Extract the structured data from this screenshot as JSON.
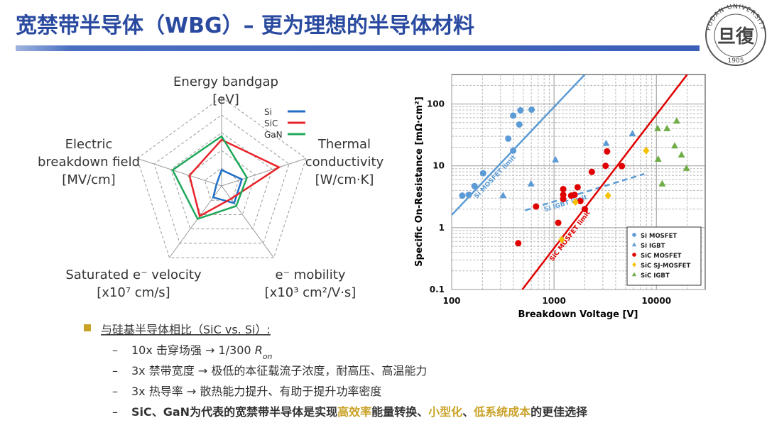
{
  "slide": {
    "title": "宽禁带半导体（WBG）– 更为理想的半导体材料",
    "bullet": "与硅基半导体相比（SiC vs. Si）:",
    "items": [
      {
        "parts": [
          {
            "text": "10x 击穿场强 → 1/300 "
          },
          {
            "text": "R",
            "style": "italic"
          },
          {
            "text": "on",
            "style": "italic-sub"
          }
        ]
      },
      {
        "parts": [
          {
            "text": "3x 禁带宽度 → 极低的本征载流子浓度，耐高压、高温能力"
          }
        ]
      },
      {
        "parts": [
          {
            "text": "3x 热导率 → 散热能力提升、有助于提升功率密度"
          }
        ]
      },
      {
        "bold": true,
        "color": "#1f3a8a",
        "parts": [
          {
            "text": "SiC、GaN为代表的宽禁带半导体是实现"
          },
          {
            "text": "高效率",
            "color": "#c9a227"
          },
          {
            "text": "能量转换、"
          },
          {
            "text": "小型化",
            "color": "#c9a227"
          },
          {
            "text": "、"
          },
          {
            "text": "低系统成本",
            "color": "#c9a227"
          },
          {
            "text": "的更佳选择"
          }
        ]
      }
    ]
  },
  "logo": {
    "text": "FUDAN UNIVERSITY",
    "year": "1905",
    "mark": "旦復"
  },
  "chart_data": [
    {
      "type": "radar",
      "axes": [
        [
          "Energy bandgap",
          "[eV]"
        ],
        [
          "Thermal",
          "conductivity",
          "[W/cm·K]"
        ],
        [
          "e⁻ mobility",
          "[x10³ cm²/V·s]"
        ],
        [
          "Saturated e⁻ velocity",
          "[x10⁷ cm/s]"
        ],
        [
          "Electric",
          "breakdown field",
          "[MV/cm]"
        ]
      ],
      "rlim": [
        0,
        5
      ],
      "rticks": [
        1,
        2,
        3,
        4,
        5
      ],
      "series": [
        {
          "name": "Si",
          "color": "#1f6fc8",
          "values": [
            0.9,
            1.2,
            1.2,
            0.8,
            0.3
          ]
        },
        {
          "name": "SiC",
          "color": "#e8242a",
          "values": [
            2.6,
            3.4,
            0.9,
            2.1,
            1.9
          ]
        },
        {
          "name": "GaN",
          "color": "#1ea85a",
          "values": [
            2.8,
            1.5,
            1.4,
            2.3,
            2.9
          ]
        }
      ]
    },
    {
      "type": "scatter",
      "xlabel": "Breakdown Voltage [V]",
      "ylabel": "Specific On-Resistance  [mΩ·cm²]",
      "xlog": true,
      "ylog": true,
      "xlim": [
        100,
        30000
      ],
      "ylim": [
        0.1,
        300
      ],
      "xticks": [
        100,
        1000,
        10000
      ],
      "yticks": [
        0.1,
        1,
        10,
        100
      ],
      "grid": true,
      "minor_grid": true,
      "legend": "lower right",
      "series": [
        {
          "name": "Si MOSFET",
          "color": "#5b9bd5",
          "marker": "circle",
          "x": [
            127,
            147,
            167,
            203,
            357,
            399,
            470,
            458,
            399,
            604
          ],
          "values": [
            3.3,
            3.4,
            4.7,
            7.6,
            27.5,
            65,
            79,
            46.6,
            17.6,
            81
          ]
        },
        {
          "name": "Si IGBT",
          "color": "#5b9bd5",
          "marker": "triangle",
          "x": [
            318,
            596,
            1033,
            3230,
            5830
          ],
          "values": [
            3.3,
            5.1,
            12.5,
            23,
            33
          ]
        },
        {
          "name": "SiC MOSFET",
          "color": "#e00000",
          "marker": "circle",
          "x": [
            447,
            667,
            1100,
            1230,
            1230,
            1230,
            1470,
            1590,
            1700,
            1810,
            2000,
            2340,
            3190,
            3300,
            4600
          ],
          "values": [
            0.56,
            2.2,
            1.2,
            4.2,
            3.4,
            2.9,
            3.3,
            3.4,
            4.5,
            2.7,
            2.0,
            8.0,
            10.0,
            17.1,
            9.9
          ]
        },
        {
          "name": "SiC SJ-MOSFET",
          "color": "#f5c000",
          "marker": "diamond",
          "x": [
            1190,
            1620,
            3370,
            7950
          ],
          "values": [
            0.64,
            2.6,
            3.3,
            17.6
          ]
        },
        {
          "name": "SiC IGBT",
          "color": "#70ad47",
          "marker": "triangle",
          "x": [
            10300,
            12700,
            15800,
            15100,
            10400,
            17600,
            19700,
            11400
          ],
          "values": [
            40,
            40,
            53,
            21,
            12.8,
            15,
            9.1,
            5.1
          ]
        }
      ],
      "lines": [
        {
          "name": "Si MOSFET limit",
          "color": "#5b9bd5",
          "dashed": false,
          "x": [
            100,
            2000
          ],
          "values": [
            1.6,
            300
          ]
        },
        {
          "name": "Si IGBT limit",
          "color": "#5b9bd5",
          "dashed": true,
          "x": [
            520,
            7600
          ],
          "values": [
            1.9,
            7.4
          ]
        },
        {
          "name": "SiC MOSFET limit",
          "color": "#e00000",
          "dashed": false,
          "x": [
            490,
            20000
          ],
          "values": [
            0.1,
            300
          ]
        }
      ]
    }
  ]
}
